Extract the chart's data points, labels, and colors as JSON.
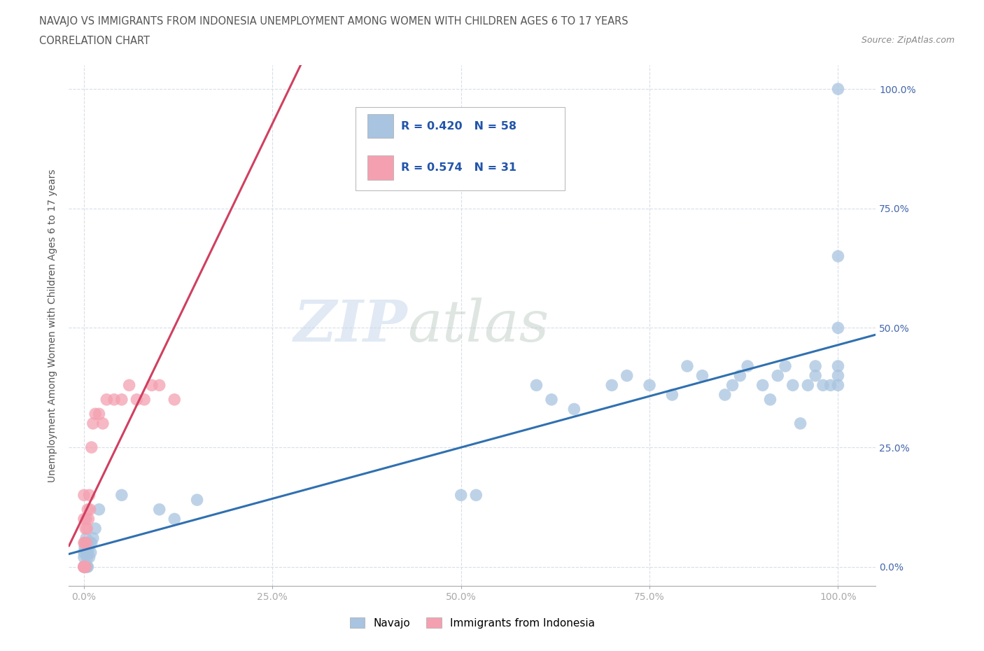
{
  "title": "NAVAJO VS IMMIGRANTS FROM INDONESIA UNEMPLOYMENT AMONG WOMEN WITH CHILDREN AGES 6 TO 17 YEARS",
  "subtitle": "CORRELATION CHART",
  "source": "Source: ZipAtlas.com",
  "ylabel": "Unemployment Among Women with Children Ages 6 to 17 years",
  "watermark_zip": "ZIP",
  "watermark_atlas": "atlas",
  "legend_label1": "Navajo",
  "legend_label2": "Immigrants from Indonesia",
  "r1": 0.42,
  "n1": 58,
  "r2": 0.574,
  "n2": 31,
  "navajo_color": "#a8c4e0",
  "indonesia_color": "#f4a0b0",
  "trend_color1": "#3070b0",
  "trend_color2": "#d04060",
  "navajo_x": [
    0.0,
    0.0,
    0.0,
    0.0,
    0.001,
    0.001,
    0.002,
    0.002,
    0.003,
    0.003,
    0.004,
    0.004,
    0.005,
    0.005,
    0.006,
    0.007,
    0.008,
    0.009,
    0.01,
    0.012,
    0.015,
    0.02,
    0.05,
    0.1,
    0.12,
    0.15,
    0.5,
    0.52,
    0.6,
    0.62,
    0.65,
    0.7,
    0.72,
    0.75,
    0.78,
    0.8,
    0.82,
    0.85,
    0.86,
    0.87,
    0.88,
    0.9,
    0.91,
    0.92,
    0.93,
    0.94,
    0.95,
    0.96,
    0.97,
    0.97,
    0.98,
    0.99,
    1.0,
    1.0,
    1.0,
    1.0,
    1.0,
    1.0
  ],
  "navajo_y": [
    0.0,
    0.0,
    0.02,
    0.03,
    0.0,
    0.04,
    0.0,
    0.05,
    0.0,
    0.06,
    0.0,
    0.02,
    0.0,
    0.03,
    0.04,
    0.02,
    0.05,
    0.03,
    0.05,
    0.06,
    0.08,
    0.12,
    0.15,
    0.12,
    0.1,
    0.14,
    0.15,
    0.15,
    0.38,
    0.35,
    0.33,
    0.38,
    0.4,
    0.38,
    0.36,
    0.42,
    0.4,
    0.36,
    0.38,
    0.4,
    0.42,
    0.38,
    0.35,
    0.4,
    0.42,
    0.38,
    0.3,
    0.38,
    0.4,
    0.42,
    0.38,
    0.38,
    0.42,
    0.4,
    0.38,
    1.0,
    0.65,
    0.5
  ],
  "indonesia_x": [
    0.0,
    0.0,
    0.0,
    0.0,
    0.0,
    0.0,
    0.001,
    0.001,
    0.002,
    0.002,
    0.003,
    0.003,
    0.004,
    0.005,
    0.006,
    0.007,
    0.008,
    0.01,
    0.012,
    0.015,
    0.02,
    0.025,
    0.03,
    0.04,
    0.05,
    0.06,
    0.07,
    0.08,
    0.09,
    0.1,
    0.12
  ],
  "indonesia_y": [
    0.0,
    0.0,
    0.0,
    0.05,
    0.1,
    0.15,
    0.0,
    0.05,
    0.0,
    0.08,
    0.05,
    0.1,
    0.08,
    0.12,
    0.1,
    0.15,
    0.12,
    0.25,
    0.3,
    0.32,
    0.32,
    0.3,
    0.35,
    0.35,
    0.35,
    0.38,
    0.35,
    0.35,
    0.38,
    0.38,
    0.35
  ],
  "xlim": [
    -0.02,
    1.05
  ],
  "ylim": [
    -0.04,
    1.05
  ],
  "xticks": [
    0.0,
    0.25,
    0.5,
    0.75,
    1.0
  ],
  "xtick_labels": [
    "0.0%",
    "25.0%",
    "50.0%",
    "75.0%",
    "100.0%"
  ],
  "yticks": [
    0.0,
    0.25,
    0.5,
    0.75,
    1.0
  ],
  "ytick_labels": [
    "0.0%",
    "25.0%",
    "50.0%",
    "75.0%",
    "100.0%"
  ],
  "background_color": "#ffffff",
  "grid_color": "#d8dde8",
  "title_color": "#555555",
  "axis_label_color": "#555555",
  "tick_label_color": "#4466aa"
}
